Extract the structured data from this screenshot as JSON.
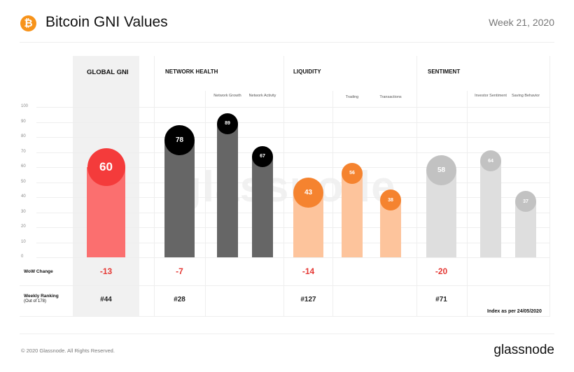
{
  "header": {
    "title": "Bitcoin GNI Values",
    "week": "Week 21, 2020",
    "logo_glyph": "₿"
  },
  "footer": {
    "copyright": "© 2020 Glassnode. All Rights Reserved.",
    "brand": "glassnode"
  },
  "watermark": "glassnode",
  "rows": {
    "wow_label": "WoW  Change",
    "ranking_label": "Weekly Ranking",
    "ranking_sub": "(Out of 178)"
  },
  "note": "Index as per 24/05/2020",
  "colors": {
    "red": "#f43b3b",
    "red_bar": "#fb6f6f",
    "dark": "#000000",
    "dark_bar": "#666666",
    "orange": "#f5832f",
    "orange_bar": "#fdc49c",
    "gray": "#c2c2c2",
    "gray_bar": "#dedede"
  },
  "chart_data": {
    "type": "bar",
    "ylim": [
      0,
      100
    ],
    "yticks": [
      "0",
      "10",
      "20",
      "30",
      "40",
      "50",
      "60",
      "70",
      "80",
      "90",
      "100"
    ],
    "sections": [
      {
        "title": "GLOBAL GNI",
        "value": 60,
        "wow": "-13",
        "rank": "#44",
        "subs": []
      },
      {
        "title": "NETWORK HEALTH",
        "value": 78,
        "wow": "-7",
        "rank": "#28",
        "subs": [
          {
            "name": "Network Growth",
            "value": 89
          },
          {
            "name": "Network Activity",
            "value": 67
          }
        ]
      },
      {
        "title": "LIQUIDITY",
        "value": 43,
        "wow": "-14",
        "rank": "#127",
        "subs": [
          {
            "name": "Trading",
            "value": 56
          },
          {
            "name": "Transactions",
            "value": 38
          }
        ]
      },
      {
        "title": "SENTIMENT",
        "value": 58,
        "wow": "-20",
        "rank": "#71",
        "subs": [
          {
            "name": "Investor Sentiment",
            "value": 64
          },
          {
            "name": "Saving Behavior",
            "value": 37
          }
        ]
      }
    ]
  }
}
